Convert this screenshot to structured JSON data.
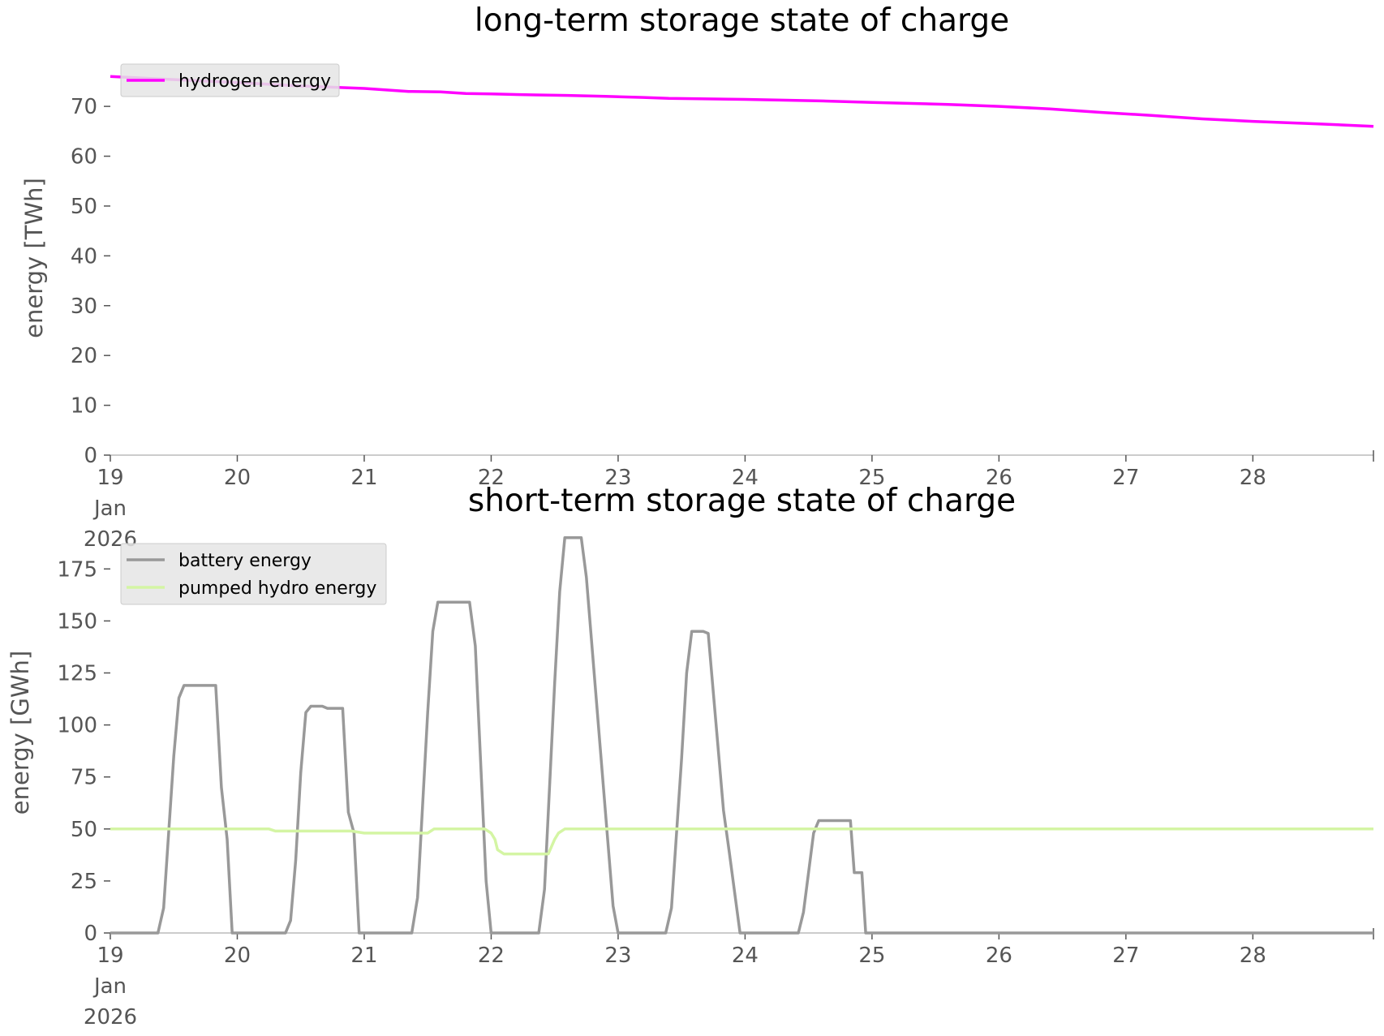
{
  "chart_data": [
    {
      "type": "line",
      "title": "long-term storage state of charge",
      "xlabel": "",
      "ylabel": "energy [TWh]",
      "xlim": [
        "2026-01-19",
        "2026-01-29"
      ],
      "ylim": [
        0,
        78
      ],
      "yticks": [
        0,
        10,
        20,
        30,
        40,
        50,
        60,
        70
      ],
      "xticks": [
        {
          "day": 0,
          "lines": [
            "19",
            "Jan",
            "2026"
          ]
        },
        {
          "day": 1,
          "lines": [
            "20"
          ]
        },
        {
          "day": 2,
          "lines": [
            "21"
          ]
        },
        {
          "day": 3,
          "lines": [
            "22"
          ]
        },
        {
          "day": 4,
          "lines": [
            "23"
          ]
        },
        {
          "day": 5,
          "lines": [
            "24"
          ]
        },
        {
          "day": 6,
          "lines": [
            "25"
          ]
        },
        {
          "day": 7,
          "lines": [
            "26"
          ]
        },
        {
          "day": 8,
          "lines": [
            "27"
          ]
        },
        {
          "day": 9,
          "lines": [
            "28"
          ]
        }
      ],
      "legend_position": "upper-left",
      "grid": false,
      "series": [
        {
          "name": "hydrogen energy",
          "color": "#ff00ff",
          "x": [
            0,
            0.4,
            1.0,
            1.5,
            2.0,
            2.35,
            2.6,
            2.8,
            3.0,
            3.35,
            3.6,
            3.9,
            4.2,
            4.4,
            4.7,
            5.0,
            5.4,
            5.6,
            6.0,
            6.6,
            7.0,
            7.4,
            7.8,
            8.2,
            8.6,
            9.0,
            9.5,
            9.95
          ],
          "y": [
            76.0,
            75.5,
            74.8,
            74.1,
            73.6,
            73.0,
            72.9,
            72.6,
            72.5,
            72.3,
            72.2,
            72.0,
            71.8,
            71.6,
            71.5,
            71.4,
            71.2,
            71.1,
            70.8,
            70.4,
            70.0,
            69.5,
            68.8,
            68.2,
            67.5,
            67.0,
            66.5,
            66.0
          ]
        }
      ]
    },
    {
      "type": "line",
      "title": "short-term storage state of charge",
      "xlabel": "",
      "ylabel": "energy [GWh]",
      "xlim": [
        "2026-01-19",
        "2026-01-29"
      ],
      "ylim": [
        0,
        195
      ],
      "yticks": [
        0,
        25,
        50,
        75,
        100,
        125,
        150,
        175
      ],
      "xticks": [
        {
          "day": 0,
          "lines": [
            "19",
            "Jan",
            "2026"
          ]
        },
        {
          "day": 1,
          "lines": [
            "20"
          ]
        },
        {
          "day": 2,
          "lines": [
            "21"
          ]
        },
        {
          "day": 3,
          "lines": [
            "22"
          ]
        },
        {
          "day": 4,
          "lines": [
            "23"
          ]
        },
        {
          "day": 5,
          "lines": [
            "24"
          ]
        },
        {
          "day": 6,
          "lines": [
            "25"
          ]
        },
        {
          "day": 7,
          "lines": [
            "26"
          ]
        },
        {
          "day": 8,
          "lines": [
            "27"
          ]
        },
        {
          "day": 9,
          "lines": [
            "28"
          ]
        }
      ],
      "legend_position": "upper-left",
      "grid": false,
      "series": [
        {
          "name": "battery energy",
          "color": "#999999",
          "x": [
            0,
            0.375,
            0.42,
            0.5,
            0.54,
            0.58,
            0.625,
            0.83,
            0.875,
            0.92,
            0.96,
            1.38,
            1.42,
            1.46,
            1.5,
            1.54,
            1.58,
            1.67,
            1.71,
            1.83,
            1.875,
            1.92,
            1.96,
            2.375,
            2.42,
            2.5,
            2.54,
            2.58,
            2.83,
            2.875,
            2.96,
            3.0,
            3.375,
            3.42,
            3.5,
            3.54,
            3.58,
            3.71,
            3.75,
            3.96,
            4.0,
            4.375,
            4.42,
            4.5,
            4.54,
            4.58,
            4.67,
            4.71,
            4.83,
            4.875,
            4.96,
            5.0,
            5.42,
            5.46,
            5.54,
            5.58,
            5.83,
            5.86,
            5.92,
            5.95,
            9.95
          ],
          "y": [
            0,
            0,
            12,
            85,
            113,
            119,
            119,
            119,
            70,
            45,
            0,
            0,
            6,
            35,
            77,
            106,
            109,
            109,
            108,
            108,
            58,
            48,
            0,
            0,
            17,
            106,
            145,
            159,
            159,
            138,
            25,
            0,
            0,
            21,
            120,
            164,
            190,
            190,
            171,
            13,
            0,
            0,
            12,
            84,
            125,
            145,
            145,
            144,
            59,
            39,
            0,
            0,
            0,
            10,
            48,
            54,
            54,
            29,
            29,
            0,
            0
          ]
        },
        {
          "name": "pumped hydro energy",
          "color": "#d4f5a4",
          "x": [
            0,
            1.25,
            1.3,
            1.9,
            2.0,
            2.5,
            2.55,
            2.95,
            3.0,
            3.03,
            3.05,
            3.1,
            3.45,
            3.5,
            3.53,
            3.58,
            9.95
          ],
          "y": [
            50,
            50,
            49,
            49,
            48,
            48,
            50,
            50,
            48,
            45,
            40,
            38,
            38,
            45,
            48,
            50,
            50
          ]
        }
      ]
    }
  ]
}
